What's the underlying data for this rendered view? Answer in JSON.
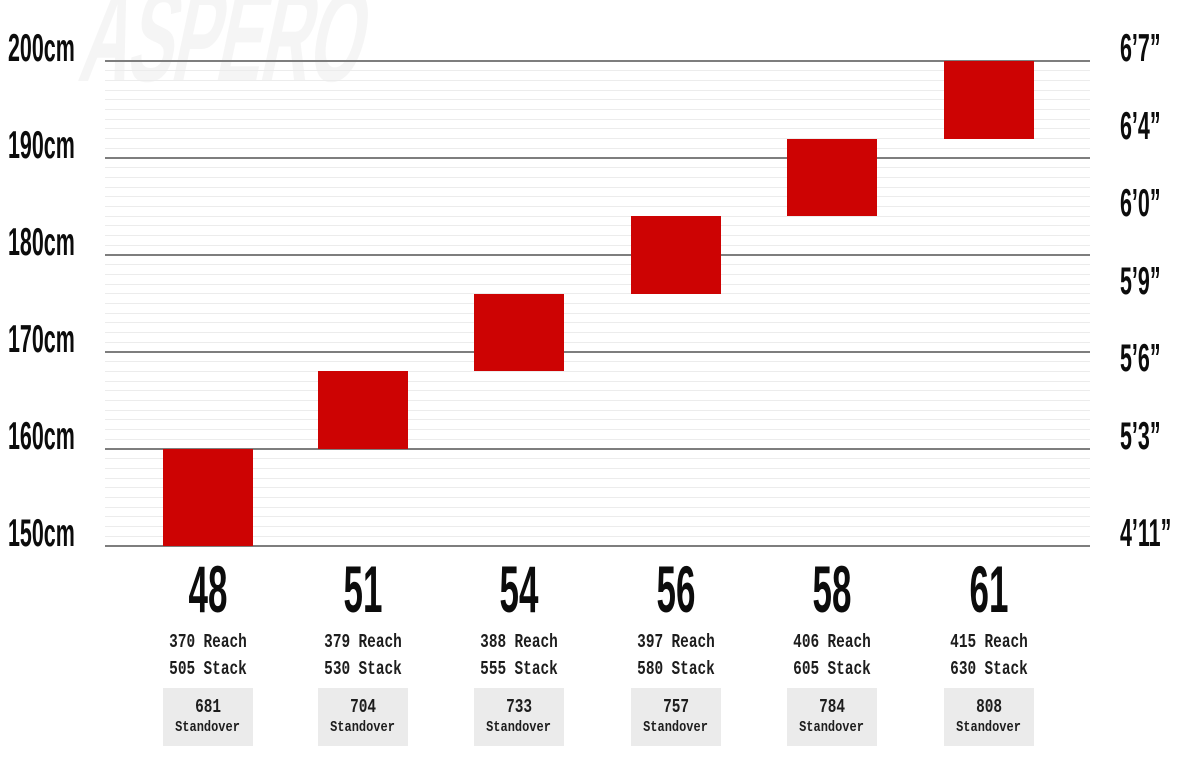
{
  "watermark": "ASPERO",
  "colors": {
    "bar_red": "#cd0303",
    "grid_major": "#7e7e7e",
    "grid_minor": "#ececec",
    "standover_box_bg": "#ebebeb",
    "text": "#0c0c0c",
    "watermark": "#f5f5f5"
  },
  "chart_data": {
    "type": "bar",
    "subtype": "floating-range-columns",
    "title": "",
    "categories": [
      "48",
      "51",
      "54",
      "56",
      "58",
      "61"
    ],
    "series": [
      {
        "name": "Rider height range (cm)",
        "ranges_cm": [
          [
            150,
            160
          ],
          [
            160,
            168
          ],
          [
            168,
            176
          ],
          [
            176,
            184
          ],
          [
            184,
            192
          ],
          [
            192,
            200
          ]
        ]
      }
    ],
    "ylim": [
      150,
      200
    ],
    "grid": {
      "minor_step_cm": 1,
      "major_step_cm": 10,
      "grid_on": true
    },
    "legend": "none",
    "bar_color": "#cd0303",
    "y_axis_left": {
      "unit": "cm",
      "ticks": [
        {
          "cm": 200,
          "label": "200cm"
        },
        {
          "cm": 190,
          "label": "190cm"
        },
        {
          "cm": 180,
          "label": "180cm"
        },
        {
          "cm": 170,
          "label": "170cm"
        },
        {
          "cm": 160,
          "label": "160cm"
        },
        {
          "cm": 150,
          "label": "150cm"
        }
      ]
    },
    "y_axis_right": {
      "unit": "feet-inches",
      "ticks": [
        {
          "cm": 200,
          "label": "6’7”"
        },
        {
          "cm": 192,
          "label": "6’4”"
        },
        {
          "cm": 184,
          "label": "6’0”"
        },
        {
          "cm": 176,
          "label": "5’9”"
        },
        {
          "cm": 168,
          "label": "5’6”"
        },
        {
          "cm": 160,
          "label": "5’3”"
        },
        {
          "cm": 150,
          "label": "4’11”"
        }
      ]
    }
  },
  "labels": {
    "reach": "Reach",
    "stack": "Stack",
    "standover": "Standover"
  },
  "size_details": [
    {
      "size": "48",
      "reach": "370",
      "stack": "505",
      "standover": "681"
    },
    {
      "size": "51",
      "reach": "379",
      "stack": "530",
      "standover": "704"
    },
    {
      "size": "54",
      "reach": "388",
      "stack": "555",
      "standover": "733"
    },
    {
      "size": "56",
      "reach": "397",
      "stack": "580",
      "standover": "757"
    },
    {
      "size": "58",
      "reach": "406",
      "stack": "605",
      "standover": "784"
    },
    {
      "size": "61",
      "reach": "415",
      "stack": "630",
      "standover": "808"
    }
  ]
}
